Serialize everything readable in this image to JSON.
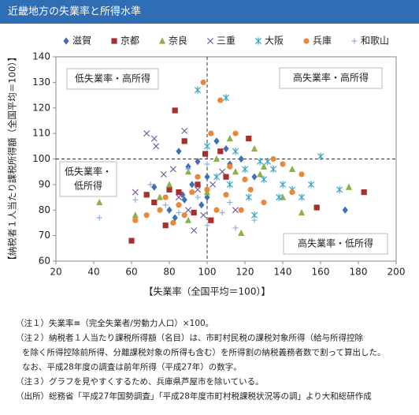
{
  "chart_data": {
    "type": "scatter",
    "title": "近畿地方の失業率と所得水準",
    "x_label": "【失業率（全国平均＝100）】",
    "y_label": "【納税者１人当たり課税所得額（全国平均＝100）】",
    "xlim": [
      20,
      200
    ],
    "ylim": [
      60,
      140
    ],
    "xticks": [
      20,
      40,
      60,
      80,
      100,
      120,
      140,
      160,
      180,
      200
    ],
    "yticks": [
      60,
      70,
      80,
      90,
      100,
      110,
      120,
      130,
      140
    ],
    "x_reference": 100,
    "y_reference": 100,
    "annotations": [
      [
        "低失業率・高所得"
      ],
      [
        "高失業率・高所得"
      ],
      [
        "低失業率・",
        "低所得"
      ],
      [
        "高失業率・低所得"
      ]
    ],
    "series": [
      {
        "name": "滋賀",
        "color": "#3f6fb6",
        "marker": "diamond",
        "x": [
          72,
          80,
          88,
          90,
          95,
          100,
          105,
          110,
          112,
          118,
          83,
          92,
          100,
          173,
          87,
          97,
          85,
          125
        ],
        "y": [
          89,
          80,
          84,
          97,
          99,
          93,
          107,
          104,
          98,
          100,
          77,
          90,
          85,
          80,
          86,
          82,
          103,
          93
        ]
      },
      {
        "name": "京都",
        "color": "#a8302c",
        "marker": "square",
        "x": [
          60,
          72,
          78,
          83,
          88,
          99,
          107,
          95,
          110,
          122,
          93,
          158,
          183,
          85,
          102,
          80,
          68
        ],
        "y": [
          68,
          83,
          74,
          119,
          107,
          102,
          103,
          90,
          93,
          108,
          79,
          81,
          87,
          87,
          76,
          88,
          86
        ]
      },
      {
        "name": "奈良",
        "color": "#8db04a",
        "marker": "triangle",
        "x": [
          43,
          62,
          75,
          80,
          90,
          105,
          112,
          115,
          125,
          130,
          140,
          150,
          175,
          118,
          100,
          128,
          90,
          145
        ],
        "y": [
          83,
          78,
          85,
          90,
          95,
          100,
          108,
          95,
          104,
          97,
          85,
          79,
          89,
          71,
          87,
          94,
          76,
          96
        ]
      },
      {
        "name": "三重",
        "color": "#7a5ea0",
        "marker": "x",
        "x": [
          62,
          68,
          73,
          77,
          82,
          88,
          90,
          95,
          98,
          103,
          108,
          115,
          72,
          85,
          93
        ],
        "y": [
          87,
          110,
          105,
          94,
          96,
          111,
          80,
          88,
          78,
          90,
          95,
          80,
          108,
          85,
          72
        ]
      },
      {
        "name": "大阪",
        "color": "#3aa5c4",
        "marker": "asterisk",
        "x": [
          95,
          110,
          100,
          115,
          120,
          128,
          135,
          140,
          145,
          150,
          160,
          170,
          112,
          122,
          130,
          138,
          155,
          125,
          105,
          132
        ],
        "y": [
          127,
          124,
          105,
          103,
          96,
          99,
          96,
          90,
          88,
          85,
          101,
          88,
          90,
          85,
          92,
          85,
          90,
          78,
          93,
          99
        ]
      },
      {
        "name": "兵庫",
        "color": "#e8883a",
        "marker": "circle",
        "x": [
          62,
          68,
          78,
          85,
          88,
          92,
          98,
          107,
          100,
          105,
          110,
          112,
          118,
          123,
          130,
          140,
          145,
          150,
          95,
          115,
          135,
          82,
          75,
          102,
          120
        ],
        "y": [
          76,
          78,
          85,
          82,
          78,
          87,
          130,
          123,
          88,
          80,
          86,
          97,
          80,
          88,
          83,
          98,
          87,
          94,
          93,
          110,
          100,
          75,
          80,
          110,
          92
        ]
      },
      {
        "name": "和歌山",
        "color": "#8fb0da",
        "marker": "plus",
        "x": [
          43,
          62,
          70,
          78,
          85,
          90,
          100,
          108,
          115,
          125,
          100,
          95,
          112
        ],
        "y": [
          77,
          84,
          90,
          82,
          79,
          96,
          74,
          79,
          73,
          76,
          98,
          85,
          83
        ]
      }
    ]
  },
  "notes": [
    "（注１）失業率≡（完全失業者/労動力人口）×100。",
    "（注２）納税者１人当たり課税所得額（名目）は、市町村民税の課税対象所得（給与所得控除",
    "を除く所得控除前所得、分離課税対象の所得も含む）を所得割の納税義務者数で割って算出した。",
    "なお、平成28年度の調査は前年所得（平成27年）の数字。",
    "（注３）グラフを見やすくするため、兵庫県芦屋市を除いている。",
    "（出所）総務省「平成27年国勢調査」「平成28年度市町村税課税状況等の調」より大和総研作成"
  ]
}
